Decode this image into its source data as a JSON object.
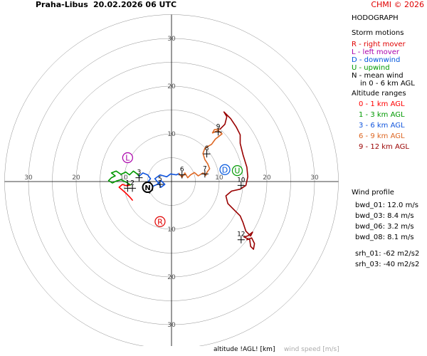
{
  "header": {
    "station": "Praha-Libus",
    "datetime": "20.02.2026 06 UTC",
    "copyright": "CHMI © 2026"
  },
  "chart_data": {
    "type": "hodograph",
    "title": "HODOGRAPH",
    "rings": [
      5,
      10,
      15,
      20,
      25,
      30,
      35
    ],
    "labeled_rings": [
      10,
      20,
      30
    ],
    "axis_range": [
      -35,
      35
    ],
    "xlabel": "altitude !AGL! [km]",
    "unit_label": "wind speed [m/s]",
    "segments": [
      {
        "name": "0 - 1 km AGL",
        "color": "#ff0000",
        "points": [
          [
            -8.2,
            -3.9
          ],
          [
            -8.8,
            -3.2
          ],
          [
            -9.6,
            -2.4
          ],
          [
            -10.5,
            -1.6
          ],
          [
            -11.0,
            -1.2
          ],
          [
            -10.3,
            -0.6
          ],
          [
            -9.4,
            -0.9
          ],
          [
            -8.6,
            -0.7
          ]
        ]
      },
      {
        "name": "1 - 3 km AGL",
        "color": "#009900",
        "points": [
          [
            -8.6,
            -0.7
          ],
          [
            -9.4,
            -0.2
          ],
          [
            -10.6,
            0.4
          ],
          [
            -11.6,
            0.1
          ],
          [
            -12.4,
            -0.3
          ],
          [
            -13.2,
            0.2
          ],
          [
            -12.6,
            0.8
          ],
          [
            -11.8,
            1.2
          ],
          [
            -12.6,
            1.8
          ],
          [
            -11.6,
            2.2
          ],
          [
            -10.6,
            1.5
          ],
          [
            -9.6,
            2.0
          ],
          [
            -8.8,
            1.4
          ],
          [
            -8.0,
            2.2
          ],
          [
            -7.2,
            1.6
          ],
          [
            -6.8,
            1.1
          ]
        ]
      },
      {
        "name": "3 - 6 km AGL",
        "color": "#1155dd",
        "points": [
          [
            -6.8,
            1.1
          ],
          [
            -6.0,
            1.8
          ],
          [
            -5.0,
            1.4
          ],
          [
            -4.4,
            0.6
          ],
          [
            -5.2,
            -0.4
          ],
          [
            -4.2,
            -1.1
          ],
          [
            -3.0,
            -0.6
          ],
          [
            -2.2,
            0.2
          ],
          [
            -1.4,
            -0.6
          ],
          [
            -2.2,
            -1.2
          ],
          [
            -2.8,
            -0.2
          ],
          [
            -3.5,
            0.6
          ],
          [
            -2.4,
            1.4
          ],
          [
            -1.0,
            1.0
          ],
          [
            -0.2,
            1.6
          ],
          [
            1.0,
            1.4
          ],
          [
            1.6,
            1.7
          ]
        ]
      },
      {
        "name": "6 - 9 km AGL",
        "color": "#dd6622",
        "points": [
          [
            1.6,
            1.7
          ],
          [
            2.2,
            0.9
          ],
          [
            2.8,
            1.8
          ],
          [
            3.4,
            0.8
          ],
          [
            4.0,
            1.4
          ],
          [
            4.8,
            1.9
          ],
          [
            5.6,
            1.2
          ],
          [
            6.6,
            1.8
          ],
          [
            7.2,
            1.3
          ],
          [
            7.4,
            1.9
          ],
          [
            8.0,
            2.7
          ],
          [
            7.6,
            3.7
          ],
          [
            7.0,
            4.6
          ],
          [
            6.6,
            5.9
          ],
          [
            7.0,
            7.0
          ],
          [
            8.4,
            7.8
          ],
          [
            9.2,
            8.9
          ],
          [
            10.6,
            10.0
          ],
          [
            9.8,
            10.7
          ],
          [
            8.6,
            10.2
          ],
          [
            9.0,
            10.9
          ],
          [
            10.2,
            11.0
          ]
        ]
      },
      {
        "name": "9 - 12 km AGL",
        "color": "#990000",
        "points": [
          [
            10.2,
            11.0
          ],
          [
            11.2,
            12.0
          ],
          [
            11.6,
            13.6
          ],
          [
            11.0,
            14.6
          ],
          [
            12.4,
            13.2
          ],
          [
            13.6,
            11.4
          ],
          [
            14.4,
            9.8
          ],
          [
            14.4,
            8.0
          ],
          [
            15.0,
            5.6
          ],
          [
            15.8,
            3.0
          ],
          [
            16.0,
            1.0
          ],
          [
            15.6,
            -0.8
          ],
          [
            14.4,
            -1.6
          ],
          [
            12.6,
            -2.0
          ],
          [
            11.4,
            -3.0
          ],
          [
            11.8,
            -4.6
          ],
          [
            13.2,
            -6.0
          ],
          [
            14.4,
            -7.2
          ],
          [
            15.0,
            -8.6
          ],
          [
            15.6,
            -10.4
          ],
          [
            16.6,
            -11.4
          ],
          [
            17.0,
            -10.6
          ],
          [
            16.0,
            -11.4
          ],
          [
            15.2,
            -11.6
          ],
          [
            16.4,
            -12.2
          ],
          [
            16.6,
            -13.6
          ],
          [
            17.2,
            -14.2
          ],
          [
            17.4,
            -13.0
          ],
          [
            16.8,
            -11.8
          ],
          [
            15.8,
            -12.2
          ]
        ]
      }
    ],
    "altitude_marks": [
      {
        "label": "1",
        "u": -9.2,
        "v": -1.4
      },
      {
        "label": "2",
        "u": -8.2,
        "v": -1.4
      },
      {
        "label": "3",
        "u": -6.8,
        "v": 0.8
      },
      {
        "label": "4",
        "u": -4.6,
        "v": -1.8
      },
      {
        "label": "5",
        "u": -2.4,
        "v": -0.6
      },
      {
        "label": "6",
        "u": 2.2,
        "v": 1.4
      },
      {
        "label": "7",
        "u": 7.0,
        "v": 1.6
      },
      {
        "label": "8",
        "u": 7.4,
        "v": 5.8
      },
      {
        "label": "9",
        "u": 9.8,
        "v": 10.4
      },
      {
        "label": "10",
        "u": 14.6,
        "v": -0.8
      },
      {
        "label": "12",
        "u": 14.6,
        "v": -12.2
      }
    ],
    "storm_motions": [
      {
        "id": "R",
        "label": "right mover",
        "color": "#e00000",
        "u": -2.4,
        "v": -8.4
      },
      {
        "id": "L",
        "label": "left mover",
        "color": "#aa00aa",
        "u": -9.2,
        "v": 5.0
      },
      {
        "id": "D",
        "label": "downwind",
        "color": "#0055dd",
        "u": 11.2,
        "v": 2.5
      },
      {
        "id": "U",
        "label": "upwind",
        "color": "#009900",
        "u": 13.8,
        "v": 2.3
      },
      {
        "id": "N",
        "label": "mean wind",
        "color": "#000000",
        "u": -5.0,
        "v": -1.2
      }
    ]
  },
  "sidebar": {
    "heading": "HODOGRAPH",
    "storm_title": "Storm motions",
    "storm_items": [
      {
        "text": "R - right mover",
        "color": "#e00000"
      },
      {
        "text": "L - left mover",
        "color": "#aa00aa"
      },
      {
        "text": "D - downwind",
        "color": "#0055dd"
      },
      {
        "text": "U - upwind",
        "color": "#009900"
      },
      {
        "text": "N - mean wind",
        "color": "#000000"
      },
      {
        "text": "in 0 - 6 km AGL",
        "color": "#000000"
      }
    ],
    "alt_title": "Altitude ranges",
    "alt_items": [
      {
        "text": "0 - 1 km AGL",
        "color": "#ff0000"
      },
      {
        "text": "1 - 3 km AGL",
        "color": "#009900"
      },
      {
        "text": "3 - 6 km AGL",
        "color": "#1155dd"
      },
      {
        "text": "6 - 9 km AGL",
        "color": "#dd6622"
      },
      {
        "text": "9 - 12 km AGL",
        "color": "#990000"
      }
    ],
    "profile_title": "Wind profile",
    "profile_items": [
      "bwd_01: 12.0 m/s",
      "bwd_03: 8.4 m/s",
      "bwd_06: 3.2 m/s",
      "bwd_08: 8.1 m/s",
      "srh_01: -62 m2/s2",
      "srh_03: -40 m2/s2"
    ]
  }
}
